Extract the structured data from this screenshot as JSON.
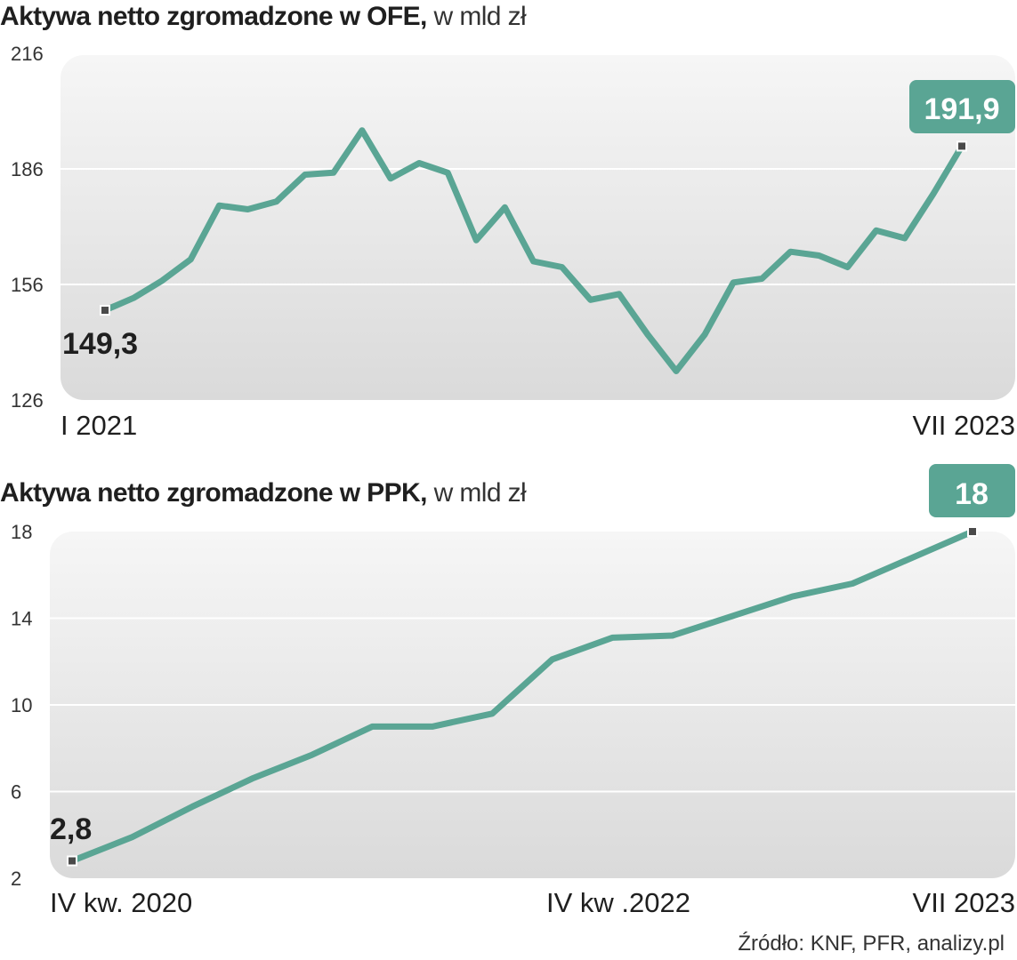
{
  "chart_data": [
    {
      "type": "line",
      "title": "Aktywa netto zgromadzone w OFE,",
      "unit": "w mld zł",
      "ylim": [
        126,
        216
      ],
      "yticks": [
        216,
        186,
        156,
        126
      ],
      "x_tick_labels": [
        "I 2021",
        "VII 2023"
      ],
      "start_label": "149,3",
      "end_label": "191,9",
      "y": [
        149.3,
        152.5,
        157,
        162.5,
        176.5,
        175.5,
        177.5,
        184.5,
        185,
        196,
        183.5,
        187.5,
        185,
        167.5,
        176,
        162,
        160.5,
        152,
        153.5,
        143,
        133.5,
        143,
        156.5,
        157.5,
        164.5,
        163.5,
        160.5,
        170,
        168,
        179.5,
        191.9
      ]
    },
    {
      "type": "line",
      "title": "Aktywa netto zgromadzone w PPK,",
      "unit": "w mld zł",
      "ylim": [
        2,
        18
      ],
      "yticks": [
        18,
        14,
        10,
        6,
        2
      ],
      "x_tick_labels": [
        "IV kw. 2020",
        "IV kw .2022",
        "VII 2023"
      ],
      "start_label": "2,8",
      "end_label": "18",
      "y": [
        2.8,
        3.9,
        5.3,
        6.6,
        7.7,
        9.0,
        9.0,
        9.6,
        12.1,
        13.1,
        13.2,
        14.1,
        15.0,
        15.6,
        16.8,
        18.0
      ]
    }
  ],
  "source": "Źródło: KNF, PFR, analizy.pl",
  "colors": {
    "line": "#5aa594",
    "badge": "#5aa594",
    "plot_bg_top": "#f5f5f5",
    "plot_bg_bottom": "#dcdcdc",
    "grid": "#ffffff",
    "marker": "#4a4a4a"
  }
}
